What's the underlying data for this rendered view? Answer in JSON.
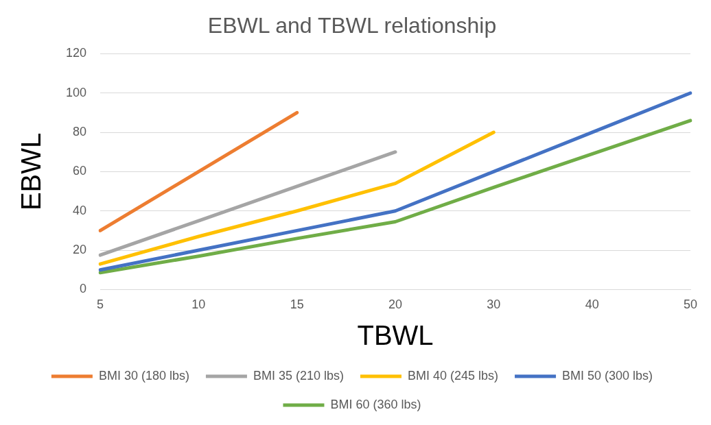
{
  "chart_data": {
    "type": "line",
    "title": "EBWL and TBWL relationship",
    "xlabel": "TBWL",
    "ylabel": "EBWL",
    "categories": [
      "5",
      "10",
      "15",
      "20",
      "30",
      "40",
      "50"
    ],
    "series": [
      {
        "name": "BMI 30 (180 lbs)",
        "color": "#ed7d31",
        "values": [
          30,
          60,
          90,
          null,
          null,
          null,
          null
        ]
      },
      {
        "name": "BMI 35 (210 lbs)",
        "color": "#a5a5a5",
        "values": [
          17.5,
          35,
          52.5,
          70,
          null,
          null,
          null
        ]
      },
      {
        "name": "BMI 40 (245 lbs)",
        "color": "#ffc000",
        "values": [
          13,
          27,
          40,
          54,
          80,
          null,
          null
        ]
      },
      {
        "name": "BMI 50 (300 lbs)",
        "color": "#4472c4",
        "values": [
          10,
          20,
          30,
          40,
          60,
          80,
          100
        ]
      },
      {
        "name": "BMI 60 (360 lbs)",
        "color": "#70ad47",
        "values": [
          8.6,
          17,
          26,
          34.5,
          52,
          69,
          86
        ]
      }
    ],
    "ylim": [
      0,
      120
    ],
    "yticks": [
      0,
      20,
      40,
      60,
      80,
      100,
      120
    ],
    "grid": "y",
    "legend": "bottom",
    "marker": "none",
    "line_style": "solid"
  }
}
